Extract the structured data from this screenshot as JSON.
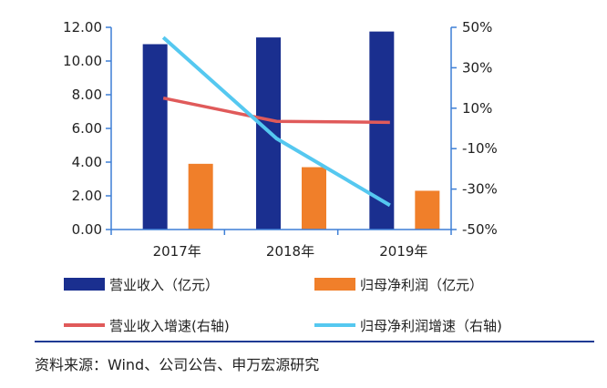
{
  "chart_data": {
    "type": "bar+line",
    "categories": [
      "2017年",
      "2018年",
      "2019年"
    ],
    "left_axis": {
      "ylim": [
        0,
        12
      ],
      "ticks": [
        "0.00",
        "2.00",
        "4.00",
        "6.00",
        "8.00",
        "10.00",
        "12.00"
      ]
    },
    "right_axis": {
      "ylim": [
        -50,
        50
      ],
      "ticks": [
        "-50%",
        "-30%",
        "-10%",
        "10%",
        "30%",
        "50%"
      ]
    },
    "bar_series": [
      {
        "name": "营业收入（亿元）",
        "color": "#1a2f8f",
        "values": [
          11.0,
          11.4,
          11.75
        ]
      },
      {
        "name": "归母净利润（亿元）",
        "color": "#f07f2a",
        "values": [
          3.9,
          3.7,
          2.3
        ]
      }
    ],
    "line_series": [
      {
        "name": "营业收入增速(右轴)",
        "color": "#e05a5a",
        "values": [
          15.0,
          3.5,
          3.0
        ]
      },
      {
        "name": "归母净利润增速（右轴)",
        "color": "#55c8f0",
        "values": [
          45.0,
          -5.0,
          -38.0
        ]
      }
    ]
  },
  "legend": {
    "items": [
      "营业收入（亿元）",
      "归母净利润（亿元）",
      "营业收入增速(右轴)",
      "归母净利润增速（右轴)"
    ]
  },
  "source": "资料来源：Wind、公司公告、申万宏源研究",
  "colors": {
    "axis": "#3d7fd6",
    "text": "#222222",
    "rule": "#1f3a93"
  }
}
